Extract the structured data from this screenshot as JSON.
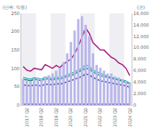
{
  "chart_data": {
    "type": "bar",
    "y_label": "(단위: 억원)",
    "y2_label": "(건)",
    "categories": [
      null,
      "2017 Q2",
      null,
      null,
      null,
      "2018 Q2",
      null,
      null,
      null,
      "2019 Q2",
      null,
      null,
      null,
      "2020 Q2",
      null,
      null,
      null,
      "2021 Q2",
      null,
      null,
      null,
      "2022 Q2",
      null,
      null,
      null,
      "2023 Q2",
      null,
      null,
      null,
      "2024 Q2"
    ],
    "ylim": [
      0,
      250
    ],
    "yticks": [
      0,
      50,
      100,
      150,
      200,
      250
    ],
    "y2lim": [
      0,
      16000
    ],
    "y2ticks": [
      0,
      {
        "value": 2000,
        "label": "2,000"
      },
      {
        "value": 4000,
        "label": "4,000"
      },
      {
        "value": 6000,
        "label": "6,000"
      },
      {
        "value": 8000,
        "label": "8,000"
      },
      {
        "value": 10000,
        "label": "10,000"
      },
      {
        "value": 12000,
        "label": "12,000"
      },
      {
        "value": 14000,
        "label": "14,000"
      },
      {
        "value": 16000,
        "label": "16,000"
      }
    ],
    "grid": false,
    "series": [
      {
        "type": "bar",
        "axis": "y2",
        "color": "#b9b6ea",
        "values": [
          4500,
          4300,
          4200,
          4600,
          4800,
          4500,
          5000,
          5200,
          5500,
          6000,
          6500,
          7500,
          9000,
          11000,
          13000,
          15000,
          15500,
          14000,
          12000,
          9000,
          7000,
          6500,
          6000,
          5500,
          5500,
          5000,
          4800,
          4500,
          4200,
          4000
        ]
      },
      {
        "type": "line",
        "color": "#a3177f",
        "values": [
          105,
          95,
          92,
          100,
          98,
          96,
          110,
          105,
          100,
          108,
          102,
          112,
          118,
          125,
          140,
          160,
          185,
          210,
          195,
          170,
          160,
          150,
          150,
          140,
          130,
          125,
          115,
          110,
          100,
          80
        ]
      },
      {
        "type": "line",
        "color": "#27b9c4",
        "values": [
          75,
          72,
          70,
          74,
          72,
          70,
          76,
          74,
          72,
          76,
          74,
          78,
          82,
          85,
          90,
          95,
          100,
          110,
          105,
          95,
          90,
          85,
          82,
          78,
          75,
          72,
          70,
          68,
          65,
          60
        ]
      },
      {
        "type": "line",
        "color": "#1f8a70",
        "values": [
          70,
          68,
          66,
          70,
          68,
          66,
          72,
          70,
          68,
          72,
          70,
          74,
          78,
          80,
          85,
          90,
          95,
          100,
          98,
          90,
          85,
          80,
          78,
          75,
          72,
          70,
          68,
          65,
          62,
          58
        ]
      },
      {
        "type": "line",
        "color": "#2a3f9e",
        "values": [
          55,
          53,
          52,
          55,
          54,
          52,
          57,
          56,
          55,
          58,
          57,
          60,
          63,
          66,
          70,
          74,
          78,
          85,
          82,
          75,
          70,
          66,
          64,
          62,
          60,
          58,
          56,
          54,
          52,
          48
        ]
      },
      {
        "type": "line",
        "color": "#6b3fa0",
        "values": [
          2,
          2,
          2,
          2,
          2,
          2,
          2,
          2,
          2,
          2,
          2,
          2,
          2,
          2,
          2,
          2,
          2,
          2,
          2,
          2,
          2,
          2,
          2,
          2,
          2,
          2,
          2,
          2,
          2,
          2
        ]
      }
    ]
  }
}
